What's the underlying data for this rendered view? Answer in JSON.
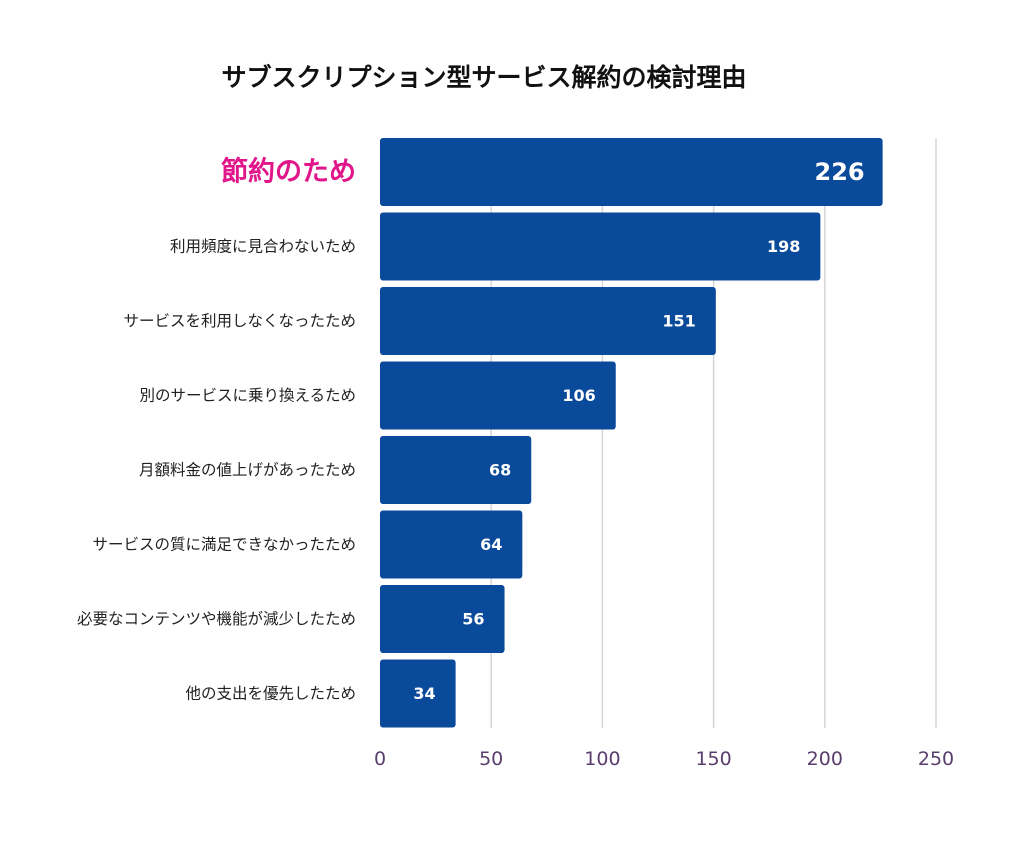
{
  "chart_data": {
    "type": "bar",
    "orientation": "horizontal",
    "title": "サブスクリプション型サービス解約の検討理由",
    "categories": [
      "節約のため",
      "利用頻度に見合わないため",
      "サービスを利用しなくなったため",
      "別のサービスに乗り換えるため",
      "月額料金の値上げがあったため",
      "サービスの質に満足できなかったため",
      "必要なコンテンツや機能が減少したため",
      "他の支出を優先したため"
    ],
    "values": [
      226,
      198,
      151,
      106,
      68,
      64,
      56,
      34
    ],
    "highlight_index": 0,
    "xlim": [
      0,
      250
    ],
    "xticks": [
      0,
      50,
      100,
      150,
      200,
      250
    ],
    "grid": true,
    "xlabel": "",
    "ylabel": ""
  },
  "colors": {
    "bar": "#0a4a9b",
    "highlight_label": "#e0168a",
    "value_label": "#ffffff",
    "tick": "#5a3f6e",
    "grid": "#d6d6d6"
  }
}
